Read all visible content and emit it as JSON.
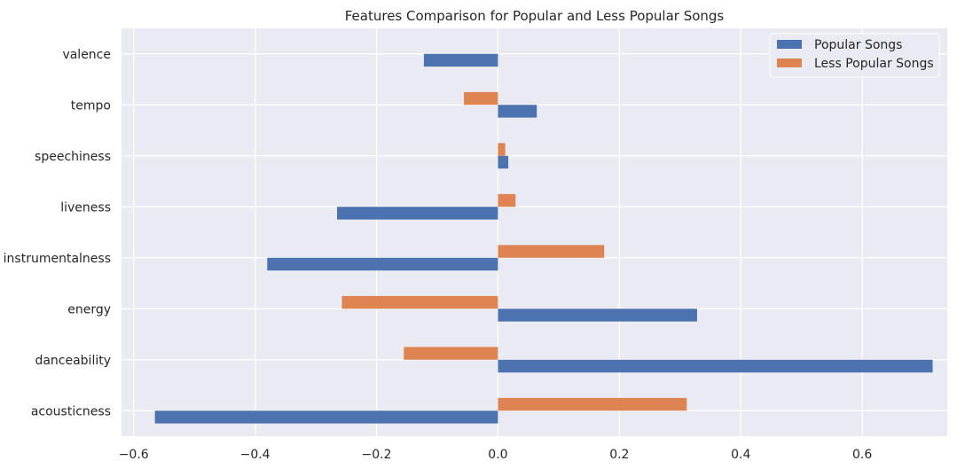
{
  "chart_data": {
    "type": "bar",
    "orientation": "horizontal",
    "title": "Features Comparison for Popular and Less Popular Songs",
    "xlabel": "",
    "ylabel": "",
    "categories": [
      "acousticness",
      "danceability",
      "energy",
      "instrumentalness",
      "liveness",
      "speechiness",
      "tempo",
      "valence"
    ],
    "series": [
      {
        "name": "Popular Songs",
        "color": "#4c72b0",
        "values": [
          -0.565,
          0.716,
          0.328,
          -0.38,
          -0.265,
          0.017,
          0.064,
          -0.122
        ]
      },
      {
        "name": "Less Popular Songs",
        "color": "#dd8452",
        "values": [
          0.311,
          -0.155,
          -0.257,
          0.175,
          0.029,
          0.012,
          -0.056,
          0.0
        ]
      }
    ],
    "xlim": [
      -0.62,
      0.74
    ],
    "xticks": [
      -0.6,
      -0.4,
      -0.2,
      0.0,
      0.2,
      0.4,
      0.6
    ],
    "xtick_labels": [
      "−0.6",
      "−0.4",
      "−0.2",
      "0.0",
      "0.2",
      "0.4",
      "0.6"
    ],
    "grid": true,
    "background": "#eaeaf2",
    "legend_position": "top-right"
  }
}
